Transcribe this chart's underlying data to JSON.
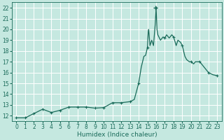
{
  "xlabel": "Humidex (Indice chaleur)",
  "background_color": "#c5e8e0",
  "grid_color": "#ffffff",
  "line_color": "#1a6b5a",
  "marker_color": "#1a6b5a",
  "ylim": [
    11.5,
    22.5
  ],
  "xlim": [
    -0.5,
    23.5
  ],
  "yticks": [
    12,
    13,
    14,
    15,
    16,
    17,
    18,
    19,
    20,
    21,
    22
  ],
  "xticks": [
    0,
    1,
    2,
    3,
    4,
    5,
    6,
    7,
    8,
    9,
    10,
    11,
    12,
    13,
    14,
    15,
    16,
    17,
    18,
    19,
    20,
    21,
    22,
    23
  ],
  "x_pts": [
    0,
    1,
    2,
    3,
    4,
    5,
    6,
    7,
    8,
    9,
    10,
    11,
    12,
    13,
    13.5,
    14,
    14.3,
    14.6,
    14.8,
    15,
    15.1,
    15.15,
    15.3,
    15.5,
    15.7,
    15.9,
    16,
    16.1,
    16.2,
    16.5,
    16.8,
    17,
    17.2,
    17.5,
    17.8,
    18,
    18.3,
    18.5,
    18.8,
    19,
    19.3,
    19.5,
    19.8,
    20,
    20.3,
    20.5,
    21,
    21.5,
    22,
    22.5,
    23
  ],
  "y_pts": [
    11.8,
    11.8,
    12.2,
    12.6,
    12.3,
    12.5,
    12.8,
    12.8,
    12.8,
    12.7,
    12.75,
    13.2,
    13.2,
    13.3,
    13.5,
    15.0,
    16.5,
    17.5,
    17.6,
    18.3,
    19.8,
    20.0,
    18.5,
    19.0,
    18.5,
    20.5,
    22.0,
    20.0,
    19.5,
    19.0,
    19.3,
    19.2,
    19.5,
    19.2,
    19.5,
    19.3,
    18.5,
    19.0,
    18.8,
    18.5,
    17.5,
    17.2,
    17.0,
    17.0,
    16.8,
    17.0,
    17.0,
    16.5,
    16.0,
    15.8,
    15.7
  ],
  "x_markers": [
    0,
    1,
    2,
    3,
    4,
    5,
    6,
    7,
    8,
    9,
    10,
    11,
    12,
    13,
    14,
    15,
    16,
    17,
    18,
    19,
    20,
    21,
    22,
    23
  ],
  "y_markers": [
    11.8,
    11.8,
    12.2,
    12.6,
    12.3,
    12.5,
    12.8,
    12.8,
    12.8,
    12.7,
    12.75,
    13.2,
    13.2,
    13.3,
    15.0,
    18.3,
    22.0,
    19.2,
    19.3,
    18.5,
    17.0,
    17.0,
    16.0,
    15.7
  ],
  "peak_x": 15.9,
  "peak_y": 22.0
}
